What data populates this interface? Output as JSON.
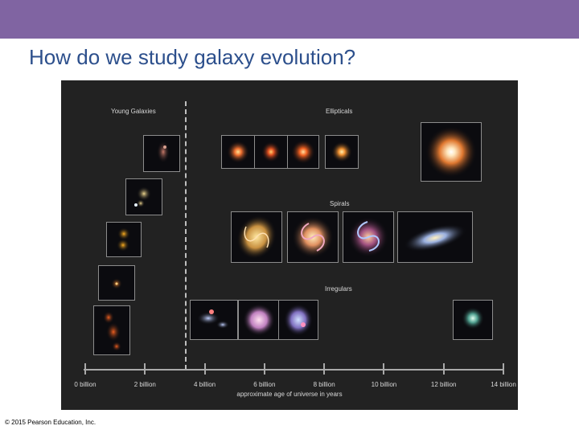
{
  "slide": {
    "title": "How do we study galaxy evolution?",
    "copyright": "© 2015 Pearson Education, Inc.",
    "accent_color": "#8064a2",
    "title_color": "#2c4f8c"
  },
  "figure": {
    "labels": {
      "young": "Young Galaxies",
      "ellipticals": "Ellipticals",
      "spirals": "Spirals",
      "irregulars": "Irregulars"
    },
    "axis": {
      "title": "approximate age of universe in years",
      "ticks": [
        "0 billion",
        "2 billion",
        "4 billion",
        "6 billion",
        "8 billion",
        "10 billion",
        "12 billion",
        "14 billion"
      ]
    }
  }
}
